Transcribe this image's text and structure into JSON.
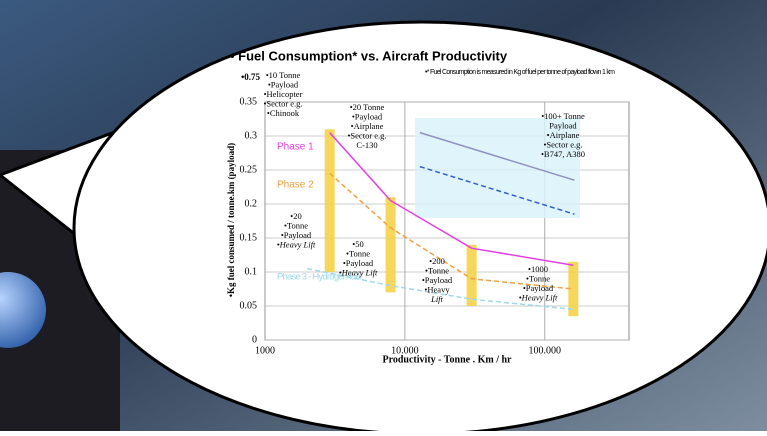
{
  "chart_data": {
    "type": "line",
    "title": "• Fuel Consumption* vs. Aircraft Productivity",
    "footnote": "•* Fuel Consumption is measured in Kg of fuel per tonne of payload flown 1 km",
    "x_label": "Productivity  -  Tonne . Km / hr",
    "y_label": "•Kg fuel consumed / tonne.km (payload)",
    "y_break_label": "•0.75",
    "x_log": true,
    "grid": true,
    "xlim": [
      1000,
      400000
    ],
    "ylim": [
      0,
      0.35
    ],
    "xticks": [
      1000,
      {
        "value": 10000,
        "label": "10.000"
      },
      {
        "value": 100000,
        "label": "100.000"
      }
    ],
    "yticks": [
      0,
      0.05,
      0.1,
      0.15,
      0.2,
      0.25,
      0.3,
      0.35
    ],
    "series": [
      {
        "name": "Phase 1",
        "color": "#e040e0",
        "dash": false,
        "x": [
          2900,
          7900,
          30000,
          160000
        ],
        "values": [
          0.305,
          0.205,
          0.135,
          0.11
        ]
      },
      {
        "name": "Phase 2",
        "color": "#f0a040",
        "dash": true,
        "x": [
          2900,
          7900,
          30000,
          160000
        ],
        "values": [
          0.245,
          0.165,
          0.09,
          0.075
        ]
      },
      {
        "name": "Phase 3 - Hydrogen fuel",
        "color": "#9fd8e8",
        "dash": true,
        "x": [
          2000,
          7900,
          30000,
          160000
        ],
        "values": [
          0.105,
          0.08,
          0.06,
          0.045
        ]
      },
      {
        "color": "#9090c0",
        "dash": false,
        "x": [
          12800,
          163000
        ],
        "values": [
          0.305,
          0.235
        ]
      },
      {
        "color": "#3060d0",
        "dash": true,
        "x": [
          12800,
          163000
        ],
        "values": [
          0.255,
          0.185
        ]
      }
    ],
    "range_bars": {
      "color": "#f5d040",
      "x": [
        2900,
        7900,
        30000,
        160000
      ],
      "low": [
        0.1,
        0.07,
        0.05,
        0.035
      ],
      "high": [
        0.31,
        0.21,
        0.14,
        0.115
      ]
    },
    "annotations": [
      [
        "•10 Tonne",
        "•Payload",
        "•Helicopter",
        "•Sector e.g.",
        "•Chinook"
      ],
      [
        "•20 Tonne",
        "•Payload",
        "•Airplane",
        "•Sector e.g.",
        "C-130"
      ],
      [
        "•100+ Tonne",
        "Payload",
        "•Airplane",
        "•Sector e.g.",
        "•B747, A380"
      ],
      [
        "•20",
        "•Tonne",
        "•Payload",
        "•Heavy Lift"
      ],
      [
        "•50",
        "•Tonne",
        "•Payload",
        "•Heavy Lift"
      ],
      [
        "•200",
        "•Tonne",
        "•Payload",
        "•Heavy",
        "Lift"
      ],
      [
        "•1000",
        "•Tonne",
        "•Payload",
        "•Heavy Lift"
      ]
    ]
  }
}
